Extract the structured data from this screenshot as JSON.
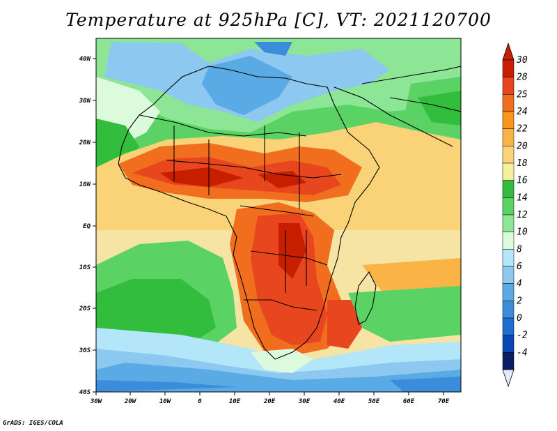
{
  "map": {
    "title": "Temperature at 925hPa [C], VT: 2021120700",
    "credit": "GrADS: IGES/COLA",
    "variable": "Temperature at 925hPa",
    "units": "C",
    "valid_time": "2021120700",
    "lon_labels": [
      "30W",
      "20W",
      "10W",
      "0",
      "10E",
      "20E",
      "30E",
      "40E",
      "50E",
      "60E",
      "70E"
    ],
    "lat_labels": [
      "40N",
      "30N",
      "20N",
      "10N",
      "EQ",
      "10S",
      "20S",
      "30S",
      "40S"
    ],
    "colorbar": {
      "labels": [
        "30",
        "28",
        "25",
        "24",
        "22",
        "20",
        "18",
        "16",
        "14",
        "12",
        "10",
        "8",
        "6",
        "4",
        "2",
        "0",
        "-2",
        "-4"
      ],
      "colors": [
        "#c81e00",
        "#e8461e",
        "#f06e1e",
        "#f8961e",
        "#fab446",
        "#fad278",
        "#f5f0a0",
        "#32be3c",
        "#5ad264",
        "#8ce696",
        "#dcfadc",
        "#b4e6fa",
        "#8cc8f0",
        "#5aaae6",
        "#3c8cdc",
        "#1e6ed2",
        "#0a46b4",
        "#0a1e64"
      ],
      "top_color": "#c81e00",
      "bottom_color": "#e6e6ff"
    },
    "palette": {
      "ocean_warm": "#f5e4a4",
      "desert_hot": "#e84a1e",
      "cool_land": "#46b446",
      "cold_sea": "#8cc8f0"
    }
  }
}
